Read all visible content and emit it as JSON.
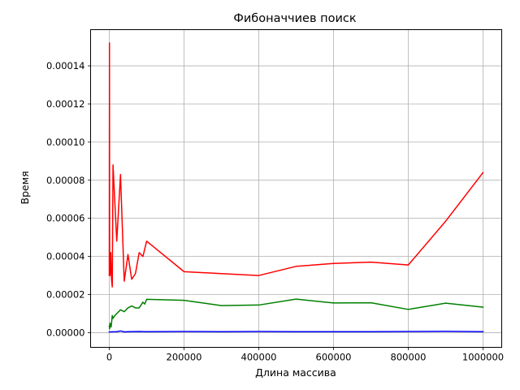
{
  "chart_data": {
    "type": "line",
    "title": "Фибоначчиев поиск",
    "xlabel": "Длина массива",
    "ylabel": "Время",
    "xlim": [
      -50000,
      1050000
    ],
    "ylim": [
      -7.7e-06,
      0.000159
    ],
    "grid": true,
    "x_ticks": [
      {
        "value": 0,
        "label": "0"
      },
      {
        "value": 200000,
        "label": "200000"
      },
      {
        "value": 400000,
        "label": "400000"
      },
      {
        "value": 600000,
        "label": "600000"
      },
      {
        "value": 800000,
        "label": "800000"
      },
      {
        "value": 1000000,
        "label": "1000000"
      }
    ],
    "y_ticks": [
      {
        "value": 0,
        "label": "0.00000"
      },
      {
        "value": 2e-05,
        "label": "0.00002"
      },
      {
        "value": 4e-05,
        "label": "0.00004"
      },
      {
        "value": 6e-05,
        "label": "0.00006"
      },
      {
        "value": 8e-05,
        "label": "0.00008"
      },
      {
        "value": 0.0001,
        "label": "0.00010"
      },
      {
        "value": 0.00012,
        "label": "0.00012"
      },
      {
        "value": 0.00014,
        "label": "0.00014"
      }
    ],
    "series": [
      {
        "color": "#ff0000",
        "x": [
          0,
          500,
          1000,
          2000,
          4000,
          6000,
          8000,
          10000,
          20000,
          30000,
          40000,
          50000,
          60000,
          70000,
          80000,
          90000,
          95000,
          100000,
          200000,
          300000,
          400000,
          500000,
          600000,
          700000,
          800000,
          900000,
          1000000
        ],
        "y": [
          3e-05,
          0.000152,
          3.4e-05,
          3e-05,
          4.2e-05,
          2.8e-05,
          2.4e-05,
          8.8e-05,
          4.8e-05,
          8.3e-05,
          2.7e-05,
          4.1e-05,
          2.8e-05,
          3.1e-05,
          4.2e-05,
          4e-05,
          4.4e-05,
          4.8e-05,
          3.2e-05,
          3.1e-05,
          3e-05,
          3.48e-05,
          3.63e-05,
          3.7e-05,
          3.55e-05,
          5.85e-05,
          8.4e-05
        ]
      },
      {
        "color": "#008000",
        "x": [
          0,
          1000,
          2000,
          5000,
          8000,
          10000,
          15000,
          20000,
          30000,
          40000,
          50000,
          60000,
          70000,
          80000,
          90000,
          95000,
          100000,
          200000,
          300000,
          400000,
          500000,
          600000,
          700000,
          800000,
          900000,
          1000000
        ],
        "y": [
          3.5e-06,
          2e-06,
          5e-06,
          3e-06,
          9e-06,
          7.5e-06,
          9e-06,
          1e-05,
          1.2e-05,
          1.1e-05,
          1.3e-05,
          1.4e-05,
          1.3e-05,
          1.3e-05,
          1.6e-05,
          1.5e-05,
          1.75e-05,
          1.7e-05,
          1.42e-05,
          1.45e-05,
          1.76e-05,
          1.56e-05,
          1.57e-05,
          1.22e-05,
          1.55e-05,
          1.34e-05
        ]
      },
      {
        "color": "#0000ff",
        "x": [
          0,
          20000,
          30000,
          40000,
          50000,
          80000,
          100000,
          200000,
          300000,
          400000,
          500000,
          600000,
          700000,
          800000,
          900000,
          1000000
        ],
        "y": [
          4e-07,
          5e-07,
          9e-07,
          4e-07,
          5e-07,
          6e-07,
          5e-07,
          6e-07,
          5e-07,
          6e-07,
          5e-07,
          5e-07,
          5e-07,
          6e-07,
          7e-07,
          5e-07
        ]
      }
    ]
  }
}
